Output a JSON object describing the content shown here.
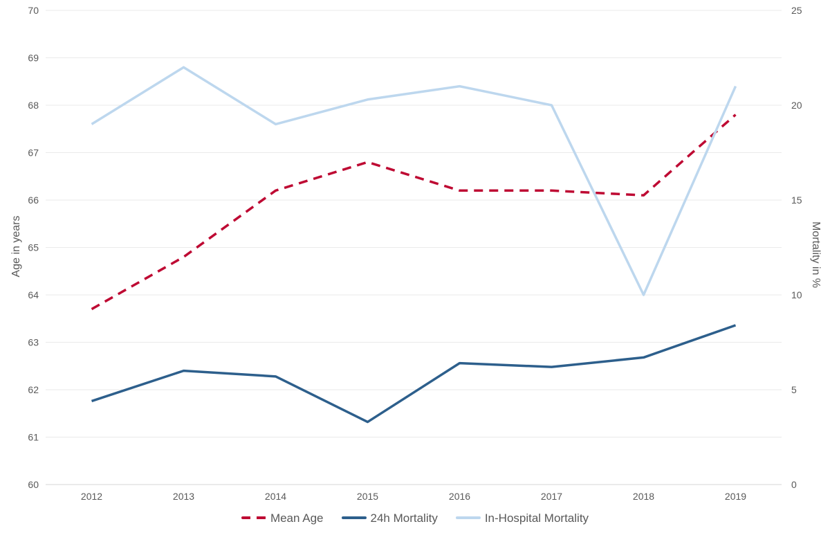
{
  "chart_data": {
    "type": "line",
    "categories": [
      "2012",
      "2013",
      "2014",
      "2015",
      "2016",
      "2017",
      "2018",
      "2019"
    ],
    "series": [
      {
        "name": "Mean Age",
        "axis": "left",
        "style": "dashed",
        "color": "#BE0A33",
        "values": [
          63.7,
          64.8,
          66.2,
          66.8,
          66.2,
          66.2,
          66.1,
          67.8
        ]
      },
      {
        "name": "24h Mortality",
        "axis": "right",
        "style": "solid",
        "color": "#2D5F8C",
        "values": [
          4.4,
          6.0,
          5.7,
          3.3,
          6.4,
          6.2,
          6.7,
          8.4
        ]
      },
      {
        "name": "In-Hospital Mortality",
        "axis": "right",
        "style": "solid",
        "color": "#BDD7EE",
        "values": [
          19,
          22,
          19,
          20.3,
          21,
          20,
          10,
          21
        ]
      }
    ],
    "left_axis": {
      "label": "Age in years",
      "min": 60,
      "max": 70,
      "ticks": [
        70,
        69,
        68,
        67,
        66,
        65,
        64,
        63,
        62,
        61,
        60
      ]
    },
    "right_axis": {
      "label": "Mortality in %",
      "min": 0,
      "max": 25,
      "ticks": [
        25,
        20,
        15,
        10,
        5,
        0
      ]
    },
    "x_axis": {
      "ticks": [
        "2012",
        "2013",
        "2014",
        "2015",
        "2016",
        "2017",
        "2018",
        "2019"
      ]
    },
    "grid": true,
    "legend_position": "bottom"
  },
  "style": {
    "gridline_color": "#EAEAEA",
    "axis_line_color": "#D6D6D6",
    "tick_label_color": "#595959",
    "axis_title_color": "#595959",
    "legend_text_color": "#595959",
    "background": "#ffffff"
  }
}
